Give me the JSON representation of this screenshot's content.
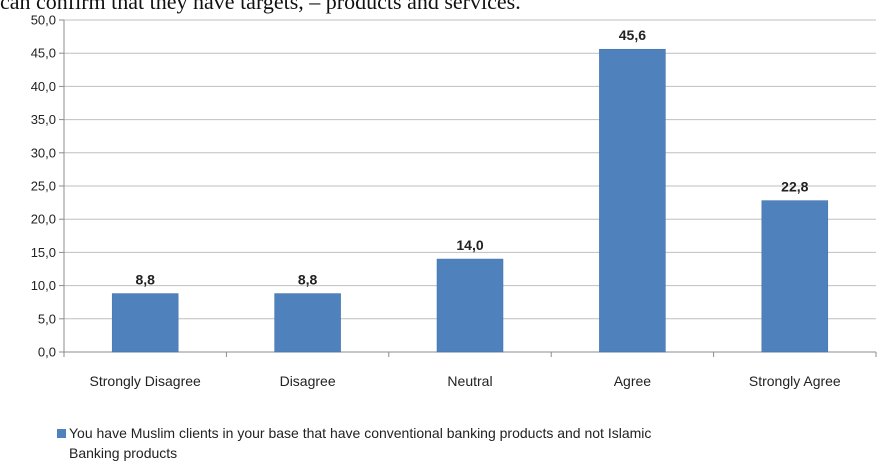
{
  "page": {
    "caption": "can confirm that they have targets, – products and services."
  },
  "chart_data": {
    "type": "bar",
    "categories": [
      "Strongly Disagree",
      "Disagree",
      "Neutral",
      "Agree",
      "Strongly Agree"
    ],
    "series": [
      {
        "name": "You have Muslim clients in your base that have conventional banking products and not Islamic Banking products",
        "legend_lines": [
          "You have Muslim clients in your base that have conventional banking products and not Islamic",
          "Banking products"
        ],
        "values": [
          8.8,
          8.8,
          14.0,
          45.6,
          22.8
        ],
        "value_labels": [
          "8,8",
          "8,8",
          "14,0",
          "45,6",
          "22,8"
        ],
        "color": "#4f81bd"
      }
    ],
    "ylim": [
      0,
      50
    ],
    "yticks": [
      0,
      5,
      10,
      15,
      20,
      25,
      30,
      35,
      40,
      45,
      50
    ],
    "ytick_labels": [
      "0,0",
      "5,0",
      "10,0",
      "15,0",
      "20,0",
      "25,0",
      "30,0",
      "35,0",
      "40,0",
      "45,0",
      "50,0"
    ],
    "grid": true,
    "legend_position": "bottom-left",
    "title": "",
    "xlabel": "",
    "ylabel": ""
  }
}
